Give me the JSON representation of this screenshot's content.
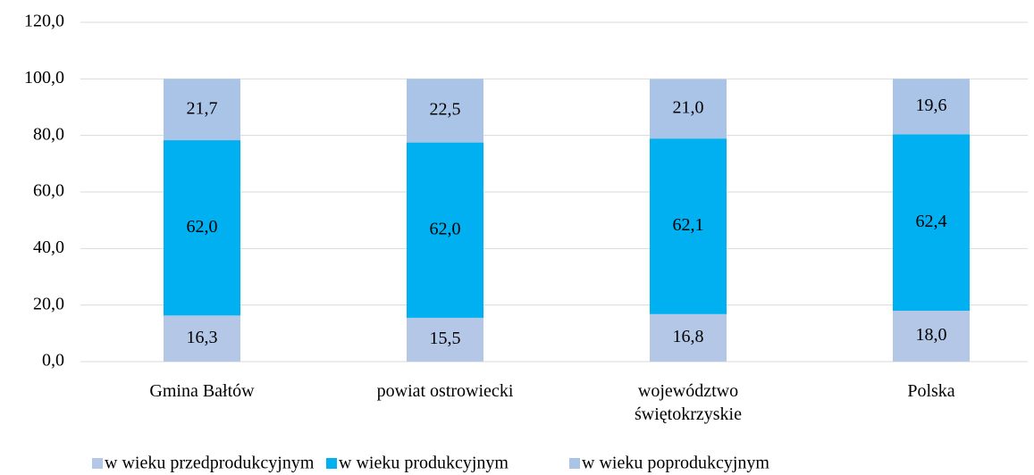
{
  "chart_data": {
    "type": "stacked_bar",
    "categories": [
      "Gmina Bałtów",
      "powiat ostrowiecki",
      "województwo świętokrzyskie",
      "Polska"
    ],
    "series": [
      {
        "name": "w wieku przedprodukcyjnym",
        "color": "#b4c7e7",
        "values": [
          16.3,
          15.5,
          16.8,
          18.0
        ],
        "value_labels": [
          "16,3",
          "15,5",
          "16,8",
          "18,0"
        ]
      },
      {
        "name": "w wieku produkcyjnym",
        "color": "#00b0f0",
        "values": [
          62.0,
          62.0,
          62.1,
          62.4
        ],
        "value_labels": [
          "62,0",
          "62,0",
          "62,1",
          "62,4"
        ]
      },
      {
        "name": "w wieku poprodukcyjnym",
        "color": "#a9c4e6",
        "values": [
          21.7,
          22.5,
          21.0,
          19.6
        ],
        "value_labels": [
          "21,7",
          "22,5",
          "21,0",
          "19,6"
        ]
      }
    ],
    "ylim": [
      0,
      120
    ],
    "yticks": [
      {
        "value": 0,
        "label": "0,0"
      },
      {
        "value": 20,
        "label": "20,0"
      },
      {
        "value": 40,
        "label": "40,0"
      },
      {
        "value": 60,
        "label": "60,0"
      },
      {
        "value": 80,
        "label": "80,0"
      },
      {
        "value": 100,
        "label": "100,0"
      },
      {
        "value": 120,
        "label": "120,0"
      }
    ],
    "grid": true,
    "legend": "bottom"
  }
}
